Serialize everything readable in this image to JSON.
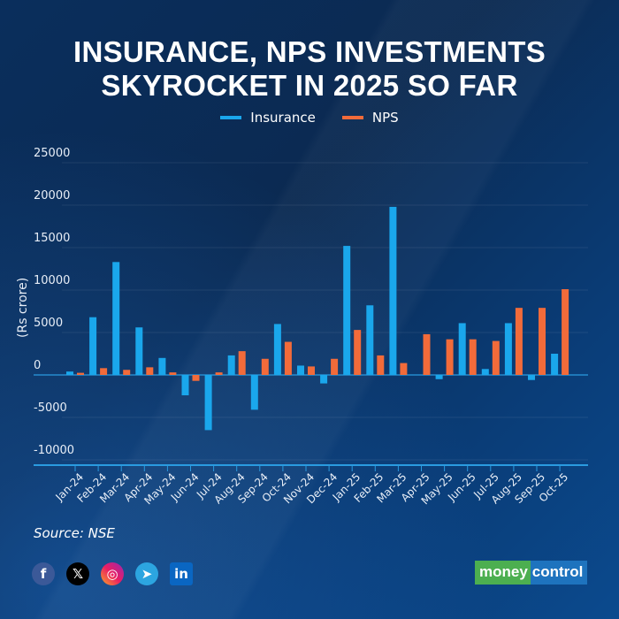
{
  "title_line1": "INSURANCE, NPS INVESTMENTS",
  "title_line2": "SKYROCKET IN 2025 SO FAR",
  "legend": [
    {
      "label": "Insurance",
      "color": "#1aa7ec"
    },
    {
      "label": "NPS",
      "color": "#f26b3a"
    }
  ],
  "source": "Source: NSE",
  "social": [
    "facebook",
    "x",
    "instagram",
    "telegram",
    "linkedin"
  ],
  "logo": {
    "part1": "money",
    "part2": "control"
  },
  "chart_data": {
    "type": "bar",
    "title": "INSURANCE, NPS INVESTMENTS SKYROCKET IN 2025 SO FAR",
    "xlabel": "",
    "ylabel": "(Rs crore)",
    "ylim": [
      -10000,
      25000
    ],
    "yticks": [
      25000,
      20000,
      15000,
      10000,
      5000,
      0,
      -5000,
      -10000
    ],
    "grid": true,
    "legend_position": "top",
    "categories": [
      "Jan-24",
      "Feb-24",
      "Mar-24",
      "Apr-24",
      "May-24",
      "Jun-24",
      "Jul-24",
      "Aug-24",
      "Sep-24",
      "Oct-24",
      "Nov-24",
      "Dec-24",
      "Jan-25",
      "Feb-25",
      "Mar-25",
      "Apr-25",
      "May-25",
      "Jun-25",
      "Jul-25",
      "Aug-25",
      "Sep-25",
      "Oct-25"
    ],
    "series": [
      {
        "name": "Insurance",
        "color": "#1aa7ec",
        "values": [
          400,
          6800,
          13300,
          5600,
          2000,
          -2400,
          -6500,
          2300,
          -4100,
          6000,
          1100,
          -1000,
          15200,
          8200,
          19800,
          0,
          -500,
          6100,
          700,
          6100,
          -600,
          2500
        ]
      },
      {
        "name": "NPS",
        "color": "#f26b3a",
        "values": [
          250,
          800,
          600,
          900,
          300,
          -700,
          300,
          2800,
          1900,
          3900,
          1000,
          1900,
          5300,
          2300,
          1400,
          4800,
          4200,
          4200,
          4000,
          7900,
          7900,
          10100
        ]
      }
    ]
  }
}
